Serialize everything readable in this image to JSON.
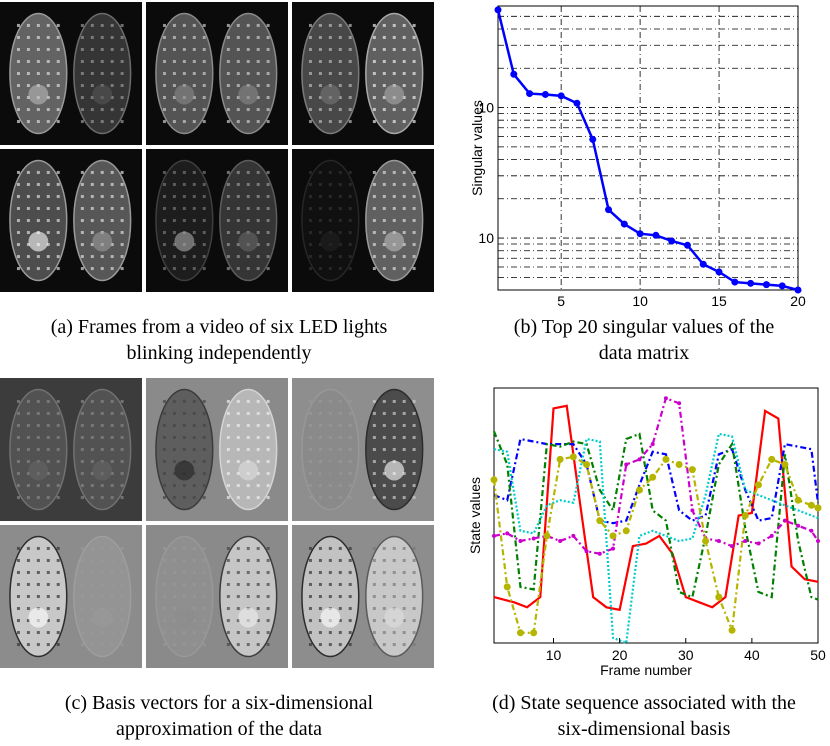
{
  "captions": {
    "a": [
      "(a) Frames from a video of six LED lights",
      "blinking independently"
    ],
    "b": [
      "(b) Top 20 singular values of the",
      "data matrix"
    ],
    "c": [
      "(c) Basis vectors for a six-dimensional",
      "approximation of the data"
    ],
    "d": [
      "(d) State sequence associated with the",
      "six-dimensional basis"
    ]
  },
  "chart_data": [
    {
      "type": "line",
      "panel": "b",
      "ylabel": "Singular values",
      "xlabel": "",
      "yscale": "log",
      "xlim": [
        1,
        20
      ],
      "ylim": [
        4,
        600
      ],
      "xticks": [
        "5",
        "10",
        "15",
        "20"
      ],
      "yticks": [
        "10^1",
        "10^2"
      ],
      "grid": true,
      "color": "#0000ff",
      "x": [
        1,
        2,
        3,
        4,
        5,
        6,
        7,
        8,
        9,
        10,
        11,
        12,
        13,
        14,
        15,
        16,
        17,
        18,
        19,
        20
      ],
      "y": [
        560,
        180,
        128,
        126,
        123,
        108,
        57,
        16.5,
        12.8,
        10.8,
        10.5,
        9.5,
        8.8,
        6.3,
        5.5,
        4.6,
        4.5,
        4.4,
        4.3,
        4.0
      ]
    },
    {
      "type": "line",
      "panel": "d",
      "xlabel": "Frame number",
      "ylabel": "State values",
      "xlim": [
        1,
        50
      ],
      "ylim": [
        0,
        1
      ],
      "xticks": [
        "10",
        "20",
        "30",
        "40",
        "50"
      ],
      "grid": false,
      "series": [
        {
          "color": "#ff0000",
          "x": [
            1,
            4,
            6,
            8,
            10,
            12,
            14,
            16,
            18,
            20,
            22,
            24,
            26,
            28,
            30,
            32,
            34,
            36,
            38,
            40,
            42,
            44,
            46,
            48,
            50
          ],
          "y": [
            0.18,
            0.16,
            0.14,
            0.18,
            0.92,
            0.93,
            0.55,
            0.18,
            0.14,
            0.13,
            0.38,
            0.39,
            0.42,
            0.35,
            0.18,
            0.16,
            0.14,
            0.18,
            0.5,
            0.51,
            0.91,
            0.88,
            0.3,
            0.25,
            0.24
          ]
        },
        {
          "color": "#0000ff",
          "x": [
            1,
            3,
            5,
            7,
            9,
            11,
            13,
            15,
            17,
            19,
            21,
            23,
            25,
            27,
            29,
            31,
            33,
            35,
            37,
            39,
            41,
            43,
            45,
            47,
            49,
            50
          ],
          "y": [
            0.58,
            0.56,
            0.8,
            0.79,
            0.78,
            0.78,
            0.78,
            0.7,
            0.48,
            0.47,
            0.48,
            0.62,
            0.75,
            0.74,
            0.52,
            0.48,
            0.5,
            0.74,
            0.76,
            0.6,
            0.48,
            0.49,
            0.78,
            0.77,
            0.76,
            0.55
          ]
        },
        {
          "color": "#008000",
          "x": [
            1,
            3,
            5,
            7,
            9,
            11,
            13,
            15,
            17,
            19,
            21,
            23,
            25,
            27,
            29,
            31,
            33,
            35,
            37,
            39,
            41,
            43,
            45,
            47,
            49,
            50
          ],
          "y": [
            0.83,
            0.7,
            0.22,
            0.21,
            0.78,
            0.77,
            0.79,
            0.78,
            0.6,
            0.52,
            0.8,
            0.82,
            0.52,
            0.48,
            0.2,
            0.18,
            0.42,
            0.7,
            0.78,
            0.45,
            0.2,
            0.18,
            0.74,
            0.4,
            0.18,
            0.17
          ]
        },
        {
          "color": "#00cccc",
          "x": [
            1,
            3,
            5,
            7,
            9,
            11,
            13,
            15,
            17,
            19,
            21,
            23,
            25,
            27,
            29,
            31,
            33,
            35,
            37,
            39,
            41,
            43,
            45,
            47,
            49,
            50
          ],
          "y": [
            0.76,
            0.75,
            0.44,
            0.43,
            0.54,
            0.56,
            0.55,
            0.8,
            0.79,
            0.02,
            0.0,
            0.42,
            0.44,
            0.42,
            0.4,
            0.41,
            0.58,
            0.82,
            0.81,
            0.6,
            0.58,
            0.56,
            0.54,
            0.52,
            0.5,
            0.49
          ]
        },
        {
          "color": "#cc00cc",
          "x": [
            1,
            3,
            5,
            7,
            9,
            11,
            13,
            15,
            17,
            19,
            21,
            23,
            25,
            27,
            29,
            31,
            33,
            35,
            37,
            39,
            41,
            43,
            45,
            47,
            49,
            50
          ],
          "y": [
            0.42,
            0.43,
            0.4,
            0.41,
            0.42,
            0.4,
            0.42,
            0.36,
            0.35,
            0.37,
            0.7,
            0.72,
            0.78,
            0.96,
            0.94,
            0.52,
            0.41,
            0.4,
            0.38,
            0.4,
            0.39,
            0.42,
            0.48,
            0.46,
            0.44,
            0.4
          ]
        },
        {
          "color": "#b5b500",
          "x": [
            1,
            3,
            5,
            7,
            9,
            11,
            13,
            15,
            17,
            19,
            21,
            23,
            25,
            27,
            29,
            31,
            33,
            35,
            37,
            39,
            41,
            43,
            45,
            47,
            49,
            50
          ],
          "y": [
            0.64,
            0.22,
            0.04,
            0.04,
            0.42,
            0.72,
            0.73,
            0.7,
            0.48,
            0.42,
            0.44,
            0.6,
            0.65,
            0.72,
            0.7,
            0.68,
            0.4,
            0.18,
            0.05,
            0.5,
            0.62,
            0.72,
            0.7,
            0.56,
            0.54,
            0.53
          ]
        }
      ]
    }
  ]
}
